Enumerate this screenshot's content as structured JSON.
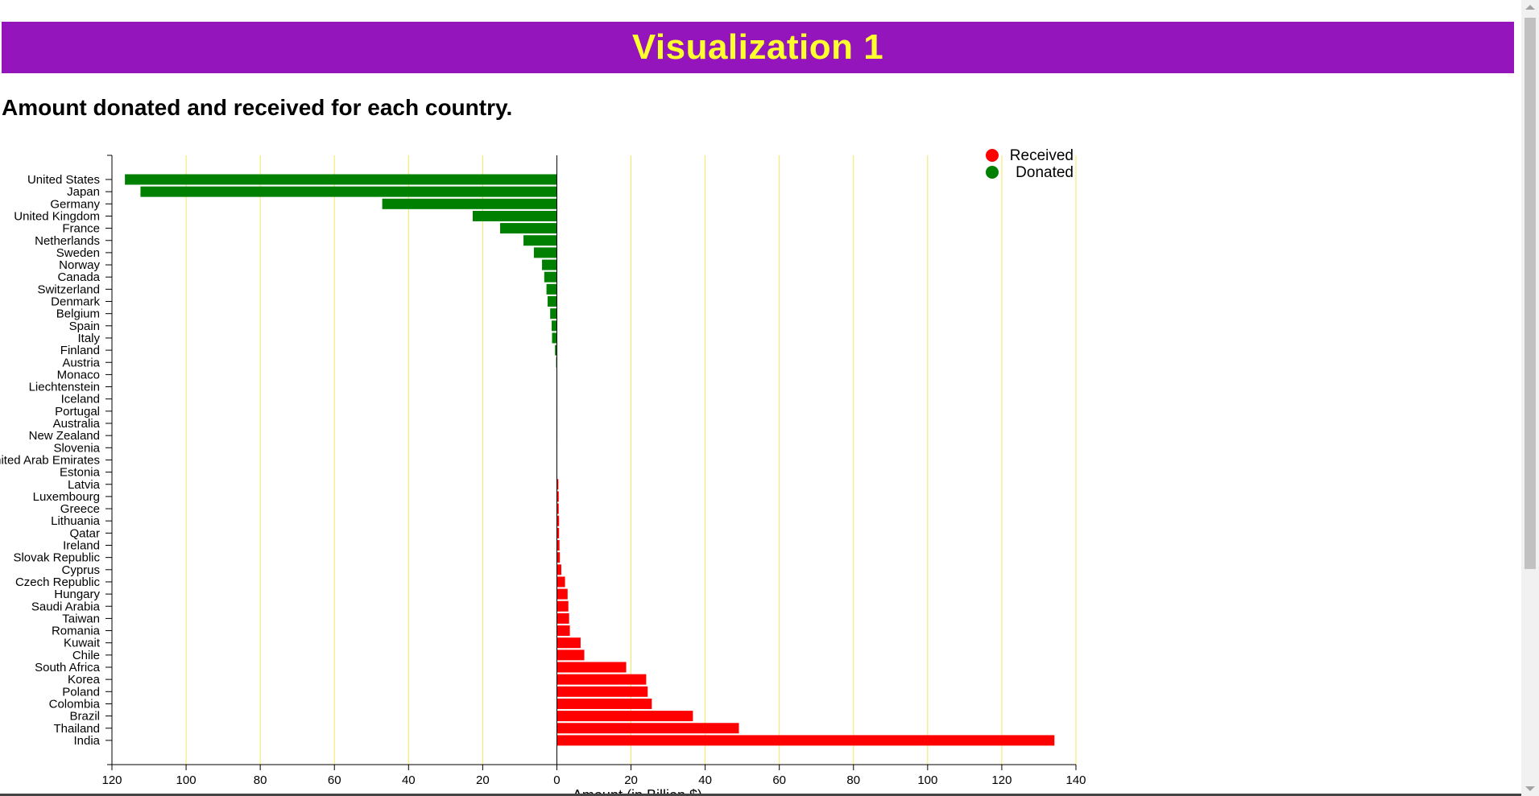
{
  "header": {
    "title": "Visualization 1"
  },
  "subtitle": "Amount donated and received for each country.",
  "colors": {
    "banner": "#9515bd",
    "title_text": "#ffff2e",
    "received": "#ff0000",
    "donated": "#008000",
    "gridline": "#f2e85a"
  },
  "chart_data": {
    "type": "bar",
    "orientation": "horizontal",
    "title": "",
    "xlabel": "Amount (in Billion $)",
    "ylabel": "",
    "xlim": [
      -120,
      140
    ],
    "xticks": [
      -120,
      -100,
      -80,
      -60,
      -40,
      -20,
      0,
      20,
      40,
      60,
      80,
      100,
      120,
      140
    ],
    "xtick_labels": [
      "120",
      "100",
      "80",
      "60",
      "40",
      "20",
      "0",
      "20",
      "40",
      "60",
      "80",
      "100",
      "120",
      "140"
    ],
    "grid": true,
    "legend_position": "top-right",
    "legend": [
      {
        "name": "Received",
        "color": "#ff0000"
      },
      {
        "name": "Donated",
        "color": "#008000"
      }
    ],
    "categories": [
      "United States",
      "Japan",
      "Germany",
      "United Kingdom",
      "France",
      "Netherlands",
      "Sweden",
      "Norway",
      "Canada",
      "Switzerland",
      "Denmark",
      "Belgium",
      "Spain",
      "Italy",
      "Finland",
      "Austria",
      "Monaco",
      "Liechtenstein",
      "Iceland",
      "Portugal",
      "Australia",
      "New Zealand",
      "Slovenia",
      "United Arab Emirates",
      "Estonia",
      "Latvia",
      "Luxembourg",
      "Greece",
      "Lithuania",
      "Qatar",
      "Ireland",
      "Slovak Republic",
      "Cyprus",
      "Czech Republic",
      "Hungary",
      "Saudi Arabia",
      "Taiwan",
      "Romania",
      "Kuwait",
      "Chile",
      "South Africa",
      "Korea",
      "Poland",
      "Colombia",
      "Brazil",
      "Thailand",
      "India"
    ],
    "values": [
      -116.5,
      -112.3,
      -47.1,
      -22.7,
      -15.3,
      -9,
      -6.2,
      -4,
      -3.4,
      -2.8,
      -2.5,
      -1.8,
      -1.4,
      -1.3,
      -0.5,
      -0.2,
      -0.05,
      -0.05,
      -0.05,
      -0.05,
      -0.05,
      -0.05,
      0,
      0,
      0,
      0.4,
      0.5,
      0.5,
      0.6,
      0.6,
      0.7,
      0.8,
      1.2,
      2.2,
      2.9,
      3.1,
      3.3,
      3.5,
      6.4,
      7.4,
      18.7,
      24.1,
      24.5,
      25.6,
      36.7,
      49.1,
      134.2
    ]
  }
}
